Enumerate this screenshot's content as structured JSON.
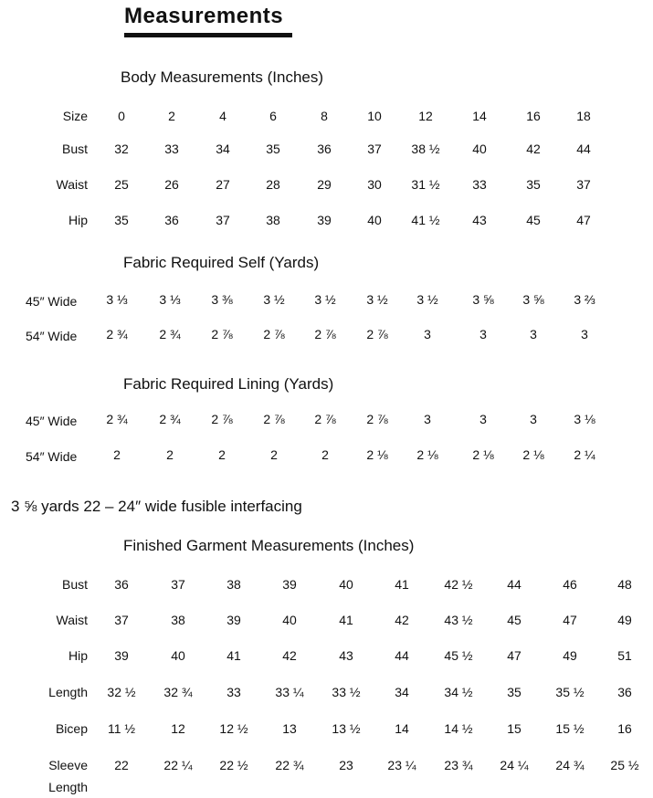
{
  "title": "Measurements",
  "body_measurements": {
    "heading": "Body Measurements (Inches)",
    "rows": [
      {
        "label": "Size",
        "values": [
          "0",
          "2",
          "4",
          "6",
          "8",
          "10",
          "12",
          "14",
          "16",
          "18"
        ]
      },
      {
        "label": "Bust",
        "values": [
          "32",
          "33",
          "34",
          "35",
          "36",
          "37",
          "38 ½",
          "40",
          "42",
          "44"
        ]
      },
      {
        "label": "Waist",
        "values": [
          "25",
          "26",
          "27",
          "28",
          "29",
          "30",
          "31 ½",
          "33",
          "35",
          "37"
        ]
      },
      {
        "label": "Hip",
        "values": [
          "35",
          "36",
          "37",
          "38",
          "39",
          "40",
          "41 ½",
          "43",
          "45",
          "47"
        ]
      }
    ]
  },
  "fabric_self": {
    "heading": "Fabric Required Self (Yards)",
    "rows": [
      {
        "label": "45″ Wide",
        "values": [
          "3 ⅓",
          "3 ⅓",
          "3 ⅜",
          "3 ½",
          "3 ½",
          "3 ½",
          "3 ½",
          "3 ⅝",
          "3 ⅝",
          "3 ⅔"
        ]
      },
      {
        "label": "54″ Wide",
        "values": [
          "2 ¾",
          "2 ¾",
          "2 ⅞",
          "2 ⅞",
          "2 ⅞",
          "2 ⅞",
          "3",
          "3",
          "3",
          "3"
        ]
      }
    ]
  },
  "fabric_lining": {
    "heading": "Fabric Required Lining (Yards)",
    "rows": [
      {
        "label": "45″ Wide",
        "values": [
          "2 ¾",
          "2 ¾",
          "2 ⅞",
          "2 ⅞",
          "2 ⅞",
          "2 ⅞",
          "3",
          "3",
          "3",
          "3 ⅛"
        ]
      },
      {
        "label": "54″ Wide",
        "values": [
          "2",
          "2",
          "2",
          "2",
          "2",
          "2 ⅛",
          "2 ⅛",
          "2 ⅛",
          "2 ⅛",
          "2 ¼"
        ]
      }
    ]
  },
  "interfacing_note": "3 ⅝ yards  22 – 24″ wide fusible interfacing",
  "finished_garment": {
    "heading": "Finished Garment Measurements (Inches)",
    "rows": [
      {
        "label": "Bust",
        "values": [
          "36",
          "37",
          "38",
          "39",
          "40",
          "41",
          "42 ½",
          "44",
          "46",
          "48"
        ]
      },
      {
        "label": "Waist",
        "values": [
          "37",
          "38",
          "39",
          "40",
          "41",
          "42",
          "43 ½",
          "45",
          "47",
          "49"
        ]
      },
      {
        "label": "Hip",
        "values": [
          "39",
          "40",
          "41",
          "42",
          "43",
          "44",
          "45 ½",
          "47",
          "49",
          "51"
        ]
      },
      {
        "label": "Length",
        "values": [
          "32 ½",
          "32 ¾",
          "33",
          "33 ¼",
          "33 ½",
          "34",
          "34 ½",
          "35",
          "35 ½",
          "36"
        ]
      },
      {
        "label": "Bicep",
        "values": [
          "11 ½",
          "12",
          "12 ½",
          "13",
          "13 ½",
          "14",
          "14 ½",
          "15",
          "15 ½",
          "16"
        ]
      },
      {
        "label": "Sleeve",
        "label2": "Length",
        "values": [
          "22",
          "22 ¼",
          "22 ½",
          "22 ¾",
          "23",
          "23 ¼",
          "23 ¾",
          "24 ¼",
          "24 ¾",
          "25 ½"
        ]
      }
    ]
  }
}
